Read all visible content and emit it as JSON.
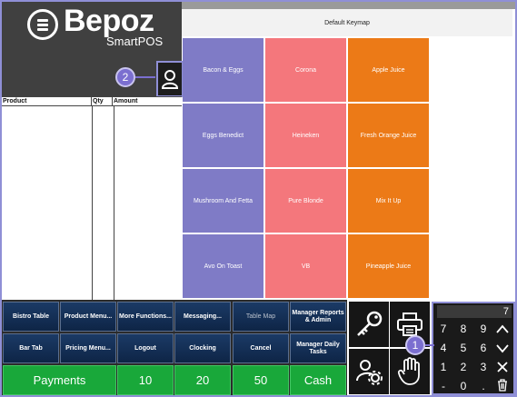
{
  "brand": {
    "name": "Bepoz",
    "sub": "SmartPOS"
  },
  "callouts": [
    "2",
    "1"
  ],
  "order_table": {
    "columns": [
      "Product",
      "Qty",
      "Amount"
    ]
  },
  "keymap": {
    "title": "Default Keymap",
    "keys": [
      {
        "label": "Bacon & Eggs",
        "color": "#7f7bc6"
      },
      {
        "label": "Corona",
        "color": "#f4777c"
      },
      {
        "label": "Apple Juice",
        "color": "#ec7a17"
      },
      {
        "label": "Eggs Benedict",
        "color": "#7f7bc6"
      },
      {
        "label": "Heineken",
        "color": "#f4777c"
      },
      {
        "label": "Fresh Orange Juice",
        "color": "#ec7a17"
      },
      {
        "label": "Mushroom And Fetta",
        "color": "#7f7bc6"
      },
      {
        "label": "Pure Blonde",
        "color": "#f4777c"
      },
      {
        "label": "Mix It Up",
        "color": "#ec7a17"
      },
      {
        "label": "Avo On Toast",
        "color": "#7f7bc6"
      },
      {
        "label": "VB",
        "color": "#f4777c"
      },
      {
        "label": "Pineapple Juice",
        "color": "#ec7a17"
      }
    ]
  },
  "functions": {
    "row1": [
      "Bistro Table",
      "Product Menu...",
      "More Functions...",
      "Messaging...",
      "Table Map",
      "Manager Reports & Admin"
    ],
    "row2": [
      "Bar Tab",
      "Pricing Menu...",
      "Logout",
      "Clocking",
      "Cancel",
      "Manager Daily Tasks"
    ],
    "row3": [
      "Payments",
      "10",
      "20",
      "50",
      "Cash"
    ]
  },
  "numpad": {
    "display": "7",
    "keys": [
      "7",
      "8",
      "9",
      "4",
      "5",
      "6",
      "1",
      "2",
      "3",
      "-",
      "0",
      "."
    ]
  },
  "icons": [
    "menu-icon",
    "user-icon",
    "key-icon",
    "printer-icon",
    "user-settings-icon",
    "hand-icon",
    "up-icon",
    "down-icon",
    "clear-icon",
    "trash-icon"
  ]
}
